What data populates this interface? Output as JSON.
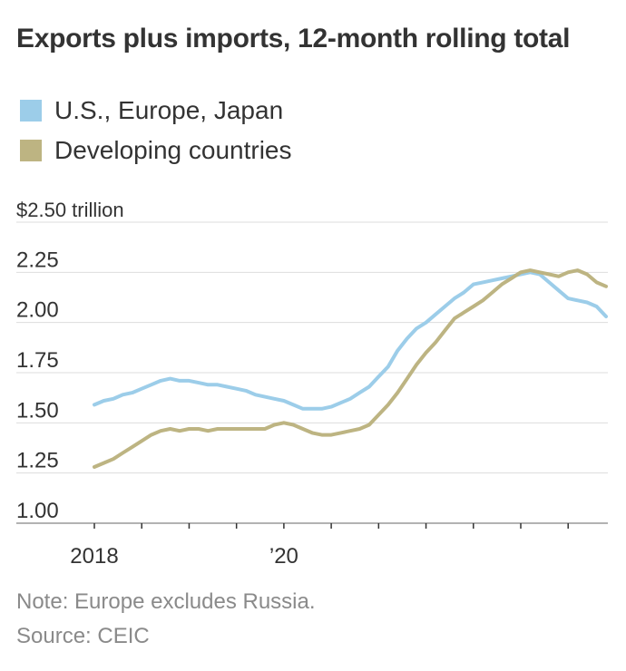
{
  "title": "Exports plus imports, 12-month rolling total",
  "legend": [
    {
      "label": "U.S., Europe, Japan",
      "color": "#9ccde9"
    },
    {
      "label": "Developing countries",
      "color": "#bdb482"
    }
  ],
  "note": "Note: Europe excludes Russia.",
  "source": "Source: CEIC",
  "chart_data": {
    "type": "line",
    "title": "Exports plus imports, 12-month rolling total",
    "xlabel": "",
    "ylabel": "",
    "x_unit": "year",
    "xlim": [
      2018,
      2023.4
    ],
    "ylim": [
      1.0,
      2.5
    ],
    "grid": true,
    "legend_position": "top-left",
    "y_ticks": [
      {
        "value": 2.5,
        "label": "$2.50 trillion"
      },
      {
        "value": 2.25,
        "label": "2.25"
      },
      {
        "value": 2.0,
        "label": "2.00"
      },
      {
        "value": 1.75,
        "label": "1.75"
      },
      {
        "value": 1.5,
        "label": "1.50"
      },
      {
        "value": 1.25,
        "label": "1.25"
      },
      {
        "value": 1.0,
        "label": "1.00"
      }
    ],
    "x_ticks": [
      2018,
      2018.5,
      2019,
      2019.5,
      2020,
      2020.5,
      2021,
      2021.5,
      2022,
      2022.5,
      2023
    ],
    "x_tick_labels": [
      {
        "value": 2018,
        "label": "2018"
      },
      {
        "value": 2020,
        "label": "’20"
      }
    ],
    "series": [
      {
        "name": "U.S., Europe, Japan",
        "color": "#9ccde9",
        "x": [
          2018.0,
          2018.1,
          2018.2,
          2018.3,
          2018.4,
          2018.5,
          2018.6,
          2018.7,
          2018.8,
          2018.9,
          2019.0,
          2019.1,
          2019.2,
          2019.3,
          2019.4,
          2019.5,
          2019.6,
          2019.7,
          2019.8,
          2019.9,
          2020.0,
          2020.1,
          2020.2,
          2020.3,
          2020.4,
          2020.5,
          2020.6,
          2020.7,
          2020.8,
          2020.9,
          2021.0,
          2021.1,
          2021.2,
          2021.3,
          2021.4,
          2021.5,
          2021.6,
          2021.7,
          2021.8,
          2021.9,
          2022.0,
          2022.1,
          2022.2,
          2022.3,
          2022.4,
          2022.5,
          2022.6,
          2022.7,
          2022.8,
          2022.9,
          2023.0,
          2023.1,
          2023.2,
          2023.3,
          2023.4
        ],
        "values": [
          1.59,
          1.61,
          1.62,
          1.64,
          1.65,
          1.67,
          1.69,
          1.71,
          1.72,
          1.71,
          1.71,
          1.7,
          1.69,
          1.69,
          1.68,
          1.67,
          1.66,
          1.64,
          1.63,
          1.62,
          1.61,
          1.59,
          1.57,
          1.57,
          1.57,
          1.58,
          1.6,
          1.62,
          1.65,
          1.68,
          1.73,
          1.78,
          1.86,
          1.92,
          1.97,
          2.0,
          2.04,
          2.08,
          2.12,
          2.15,
          2.19,
          2.2,
          2.21,
          2.22,
          2.23,
          2.24,
          2.25,
          2.24,
          2.2,
          2.16,
          2.12,
          2.11,
          2.1,
          2.08,
          2.03
        ]
      },
      {
        "name": "Developing countries",
        "color": "#bdb482",
        "x": [
          2018.0,
          2018.1,
          2018.2,
          2018.3,
          2018.4,
          2018.5,
          2018.6,
          2018.7,
          2018.8,
          2018.9,
          2019.0,
          2019.1,
          2019.2,
          2019.3,
          2019.4,
          2019.5,
          2019.6,
          2019.7,
          2019.8,
          2019.9,
          2020.0,
          2020.1,
          2020.2,
          2020.3,
          2020.4,
          2020.5,
          2020.6,
          2020.7,
          2020.8,
          2020.9,
          2021.0,
          2021.1,
          2021.2,
          2021.3,
          2021.4,
          2021.5,
          2021.6,
          2021.7,
          2021.8,
          2021.9,
          2022.0,
          2022.1,
          2022.2,
          2022.3,
          2022.4,
          2022.5,
          2022.6,
          2022.7,
          2022.8,
          2022.9,
          2023.0,
          2023.1,
          2023.2,
          2023.3,
          2023.4
        ],
        "values": [
          1.28,
          1.3,
          1.32,
          1.35,
          1.38,
          1.41,
          1.44,
          1.46,
          1.47,
          1.46,
          1.47,
          1.47,
          1.46,
          1.47,
          1.47,
          1.47,
          1.47,
          1.47,
          1.47,
          1.49,
          1.5,
          1.49,
          1.47,
          1.45,
          1.44,
          1.44,
          1.45,
          1.46,
          1.47,
          1.49,
          1.54,
          1.59,
          1.65,
          1.72,
          1.79,
          1.85,
          1.9,
          1.96,
          2.02,
          2.05,
          2.08,
          2.11,
          2.15,
          2.19,
          2.22,
          2.25,
          2.26,
          2.25,
          2.24,
          2.23,
          2.25,
          2.26,
          2.24,
          2.2,
          2.18
        ]
      }
    ]
  }
}
